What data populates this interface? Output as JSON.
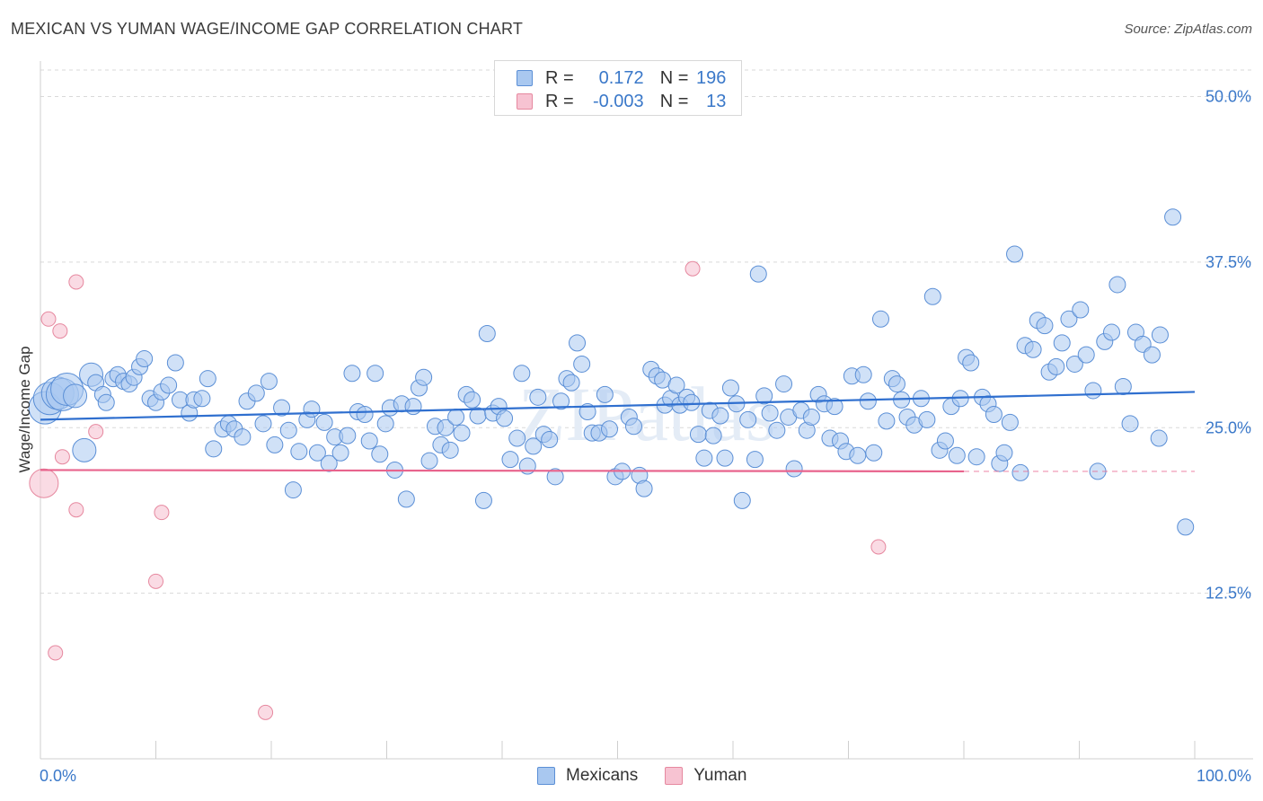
{
  "title": "MEXICAN VS YUMAN WAGE/INCOME GAP CORRELATION CHART",
  "source": "Source: ZipAtlas.com",
  "watermark": "ZIPatlas",
  "colors": {
    "blue_fill": "#a9c8f0",
    "blue_stroke": "#5b8fd6",
    "blue_line": "#2f6fcf",
    "pink_fill": "#f7c3d2",
    "pink_stroke": "#e6889f",
    "pink_line": "#e8648d",
    "tick_text": "#3a78c9",
    "grid": "#d9d9d9"
  },
  "legend": {
    "r_label": "R =",
    "n_label": "N =",
    "rows": [
      {
        "r": "0.172",
        "n": "196",
        "series": "Mexicans"
      },
      {
        "r": "-0.003",
        "n": "13",
        "series": "Yuman"
      }
    ]
  },
  "chart_data": {
    "type": "scatter",
    "title": "MEXICAN VS YUMAN WAGE/INCOME GAP CORRELATION CHART",
    "xlabel": "",
    "ylabel": "Wage/Income Gap",
    "xlim": [
      0,
      100
    ],
    "ylim": [
      0,
      52
    ],
    "x_tick_labels": [
      "0.0%",
      "100.0%"
    ],
    "y_ticks": [
      12.5,
      25.0,
      37.5,
      50.0
    ],
    "y_tick_labels": [
      "12.5%",
      "25.0%",
      "37.5%",
      "50.0%"
    ],
    "grid": true,
    "legend_position": "bottom-center",
    "series": [
      {
        "name": "Mexicans",
        "R": 0.172,
        "N": 196,
        "trend": {
          "x": [
            0,
            100
          ],
          "y": [
            25.6,
            27.7
          ]
        },
        "points": [
          [
            0.4,
            26.5
          ],
          [
            0.8,
            27.2
          ],
          [
            1.5,
            27.6
          ],
          [
            1.9,
            27.5
          ],
          [
            2.3,
            27.9
          ],
          [
            3.0,
            27.4
          ],
          [
            3.8,
            23.3
          ],
          [
            4.4,
            29.0
          ],
          [
            4.8,
            28.4
          ],
          [
            5.4,
            27.5
          ],
          [
            5.7,
            26.9
          ],
          [
            6.3,
            28.7
          ],
          [
            6.7,
            29.0
          ],
          [
            7.2,
            28.5
          ],
          [
            7.7,
            28.3
          ],
          [
            8.1,
            28.8
          ],
          [
            8.6,
            29.6
          ],
          [
            9.0,
            30.2
          ],
          [
            9.5,
            27.2
          ],
          [
            10.0,
            26.9
          ],
          [
            10.5,
            27.7
          ],
          [
            11.1,
            28.2
          ],
          [
            11.7,
            29.9
          ],
          [
            12.1,
            27.1
          ],
          [
            12.9,
            26.1
          ],
          [
            13.3,
            27.1
          ],
          [
            14.0,
            27.2
          ],
          [
            14.5,
            28.7
          ],
          [
            15.0,
            23.4
          ],
          [
            15.8,
            24.9
          ],
          [
            16.3,
            25.3
          ],
          [
            16.8,
            24.9
          ],
          [
            17.5,
            24.3
          ],
          [
            17.9,
            27.0
          ],
          [
            18.7,
            27.6
          ],
          [
            19.3,
            25.3
          ],
          [
            19.8,
            28.5
          ],
          [
            20.3,
            23.7
          ],
          [
            20.9,
            26.5
          ],
          [
            21.5,
            24.8
          ],
          [
            21.9,
            20.3
          ],
          [
            22.4,
            23.2
          ],
          [
            23.1,
            25.6
          ],
          [
            23.5,
            26.4
          ],
          [
            24.0,
            23.1
          ],
          [
            24.6,
            25.4
          ],
          [
            25.0,
            22.3
          ],
          [
            25.5,
            24.3
          ],
          [
            26.0,
            23.1
          ],
          [
            26.6,
            24.4
          ],
          [
            27.0,
            29.1
          ],
          [
            27.5,
            26.2
          ],
          [
            28.1,
            26.0
          ],
          [
            28.5,
            24.0
          ],
          [
            29.0,
            29.1
          ],
          [
            29.4,
            23.0
          ],
          [
            29.9,
            25.3
          ],
          [
            30.3,
            26.5
          ],
          [
            30.7,
            21.8
          ],
          [
            31.3,
            26.8
          ],
          [
            31.7,
            19.6
          ],
          [
            32.3,
            26.6
          ],
          [
            32.8,
            28.0
          ],
          [
            33.2,
            28.8
          ],
          [
            33.7,
            22.5
          ],
          [
            34.2,
            25.1
          ],
          [
            34.7,
            23.7
          ],
          [
            35.1,
            25.0
          ],
          [
            35.5,
            23.3
          ],
          [
            36.0,
            25.8
          ],
          [
            36.5,
            24.6
          ],
          [
            36.9,
            27.5
          ],
          [
            37.4,
            27.1
          ],
          [
            37.9,
            25.9
          ],
          [
            38.4,
            19.5
          ],
          [
            38.7,
            32.1
          ],
          [
            39.2,
            26.1
          ],
          [
            39.7,
            26.6
          ],
          [
            40.2,
            25.7
          ],
          [
            40.7,
            22.6
          ],
          [
            41.3,
            24.2
          ],
          [
            41.7,
            29.1
          ],
          [
            42.2,
            22.1
          ],
          [
            42.7,
            23.6
          ],
          [
            43.1,
            27.3
          ],
          [
            43.6,
            24.5
          ],
          [
            44.1,
            24.1
          ],
          [
            44.6,
            21.3
          ],
          [
            45.1,
            27.0
          ],
          [
            45.6,
            28.7
          ],
          [
            46.0,
            28.4
          ],
          [
            46.5,
            31.4
          ],
          [
            46.9,
            29.8
          ],
          [
            47.4,
            26.2
          ],
          [
            47.8,
            24.6
          ],
          [
            48.4,
            24.6
          ],
          [
            48.9,
            27.5
          ],
          [
            49.3,
            24.9
          ],
          [
            49.8,
            21.3
          ],
          [
            50.4,
            21.7
          ],
          [
            51.0,
            25.8
          ],
          [
            51.4,
            25.1
          ],
          [
            51.9,
            21.4
          ],
          [
            52.3,
            20.4
          ],
          [
            52.9,
            29.4
          ],
          [
            53.4,
            28.9
          ],
          [
            53.9,
            28.6
          ],
          [
            54.1,
            26.7
          ],
          [
            54.6,
            27.2
          ],
          [
            55.1,
            28.2
          ],
          [
            55.4,
            26.7
          ],
          [
            56.0,
            27.3
          ],
          [
            56.4,
            26.9
          ],
          [
            57.0,
            24.5
          ],
          [
            57.5,
            22.7
          ],
          [
            58.0,
            26.3
          ],
          [
            58.3,
            24.4
          ],
          [
            58.9,
            25.9
          ],
          [
            59.3,
            22.7
          ],
          [
            59.8,
            28.0
          ],
          [
            60.3,
            26.8
          ],
          [
            60.8,
            19.5
          ],
          [
            61.3,
            25.6
          ],
          [
            61.9,
            22.6
          ],
          [
            62.2,
            36.6
          ],
          [
            62.7,
            27.4
          ],
          [
            63.2,
            26.1
          ],
          [
            63.8,
            24.8
          ],
          [
            64.4,
            28.3
          ],
          [
            64.8,
            25.8
          ],
          [
            65.3,
            21.9
          ],
          [
            65.9,
            26.3
          ],
          [
            66.4,
            24.8
          ],
          [
            66.8,
            25.8
          ],
          [
            67.4,
            27.5
          ],
          [
            67.9,
            26.8
          ],
          [
            68.4,
            24.2
          ],
          [
            68.8,
            26.6
          ],
          [
            69.3,
            24.0
          ],
          [
            69.8,
            23.2
          ],
          [
            70.3,
            28.9
          ],
          [
            70.8,
            22.9
          ],
          [
            71.3,
            29.0
          ],
          [
            71.7,
            27.0
          ],
          [
            72.2,
            23.1
          ],
          [
            72.8,
            33.2
          ],
          [
            73.3,
            25.5
          ],
          [
            73.8,
            28.7
          ],
          [
            74.2,
            28.3
          ],
          [
            74.6,
            27.1
          ],
          [
            75.1,
            25.8
          ],
          [
            75.7,
            25.2
          ],
          [
            76.3,
            27.2
          ],
          [
            76.8,
            25.6
          ],
          [
            77.3,
            34.9
          ],
          [
            77.9,
            23.3
          ],
          [
            78.4,
            24.0
          ],
          [
            78.9,
            26.6
          ],
          [
            79.4,
            22.9
          ],
          [
            79.7,
            27.2
          ],
          [
            80.2,
            30.3
          ],
          [
            80.6,
            29.9
          ],
          [
            81.1,
            22.8
          ],
          [
            81.6,
            27.3
          ],
          [
            82.1,
            26.8
          ],
          [
            82.6,
            26.0
          ],
          [
            83.1,
            22.3
          ],
          [
            83.5,
            23.1
          ],
          [
            84.0,
            25.4
          ],
          [
            84.4,
            38.1
          ],
          [
            84.9,
            21.6
          ],
          [
            85.3,
            31.2
          ],
          [
            86.0,
            30.9
          ],
          [
            86.4,
            33.1
          ],
          [
            87.0,
            32.7
          ],
          [
            87.4,
            29.2
          ],
          [
            88.0,
            29.6
          ],
          [
            88.5,
            31.4
          ],
          [
            89.1,
            33.2
          ],
          [
            89.6,
            29.8
          ],
          [
            90.1,
            33.9
          ],
          [
            90.6,
            30.5
          ],
          [
            91.2,
            27.8
          ],
          [
            91.6,
            21.7
          ],
          [
            92.2,
            31.5
          ],
          [
            92.8,
            32.2
          ],
          [
            93.3,
            35.8
          ],
          [
            93.8,
            28.1
          ],
          [
            94.4,
            25.3
          ],
          [
            94.9,
            32.2
          ],
          [
            95.5,
            31.3
          ],
          [
            96.3,
            30.5
          ],
          [
            97.0,
            32.0
          ],
          [
            98.1,
            40.9
          ],
          [
            99.2,
            17.5
          ],
          [
            96.9,
            24.2
          ]
        ]
      },
      {
        "name": "Yuman",
        "R": -0.003,
        "N": 13,
        "trend": {
          "x": [
            0,
            80
          ],
          "y": [
            21.8,
            21.7
          ]
        },
        "points": [
          [
            0.3,
            20.8
          ],
          [
            0.7,
            33.2
          ],
          [
            1.3,
            8.0
          ],
          [
            1.7,
            32.3
          ],
          [
            1.9,
            22.8
          ],
          [
            3.1,
            18.8
          ],
          [
            3.1,
            36.0
          ],
          [
            4.8,
            24.7
          ],
          [
            10.0,
            13.4
          ],
          [
            10.5,
            18.6
          ],
          [
            19.5,
            3.5
          ],
          [
            56.5,
            37.0
          ],
          [
            72.6,
            16.0
          ]
        ]
      }
    ]
  },
  "bottom_legend": [
    "Mexicans",
    "Yuman"
  ]
}
